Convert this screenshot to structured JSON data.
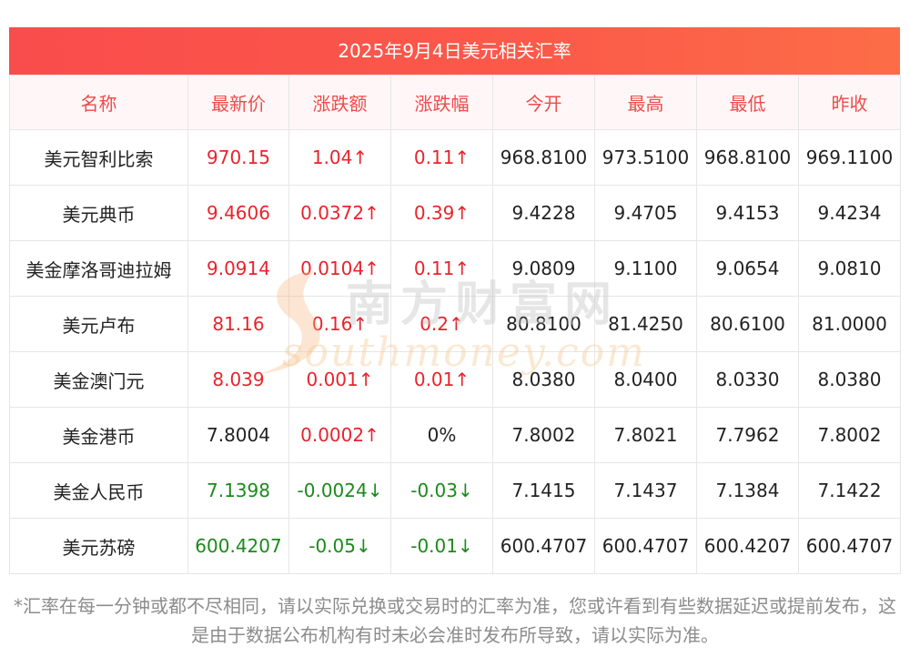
{
  "title": "2025年9月4日美元相关汇率",
  "headers": [
    "名称",
    "最新价",
    "涨跌额",
    "涨跌幅",
    "今开",
    "最高",
    "最低",
    "昨收"
  ],
  "rows": [
    {
      "name": "美元智利比索",
      "latest": "970.15",
      "change": "1.04↑",
      "pct": "0.11↑",
      "open": "968.8100",
      "high": "973.5100",
      "low": "968.8100",
      "prev": "969.1100",
      "trend": "up"
    },
    {
      "name": "美元典币",
      "latest": "9.4606",
      "change": "0.0372↑",
      "pct": "0.39↑",
      "open": "9.4228",
      "high": "9.4705",
      "low": "9.4153",
      "prev": "9.4234",
      "trend": "up"
    },
    {
      "name": "美金摩洛哥迪拉姆",
      "latest": "9.0914",
      "change": "0.0104↑",
      "pct": "0.11↑",
      "open": "9.0809",
      "high": "9.1100",
      "low": "9.0654",
      "prev": "9.0810",
      "trend": "up"
    },
    {
      "name": "美元卢布",
      "latest": "81.16",
      "change": "0.16↑",
      "pct": "0.2↑",
      "open": "80.8100",
      "high": "81.4250",
      "low": "80.6100",
      "prev": "81.0000",
      "trend": "up"
    },
    {
      "name": "美金澳门元",
      "latest": "8.039",
      "change": "0.001↑",
      "pct": "0.01↑",
      "open": "8.0380",
      "high": "8.0400",
      "low": "8.0330",
      "prev": "8.0380",
      "trend": "up"
    },
    {
      "name": "美金港币",
      "latest": "7.8004",
      "change": "0.0002↑",
      "pct": "0%",
      "open": "7.8002",
      "high": "7.8021",
      "low": "7.7962",
      "prev": "7.8002",
      "trend": "mixed"
    },
    {
      "name": "美金人民币",
      "latest": "7.1398",
      "change": "-0.0024↓",
      "pct": "-0.03↓",
      "open": "7.1415",
      "high": "7.1437",
      "low": "7.1384",
      "prev": "7.1422",
      "trend": "down"
    },
    {
      "name": "美元苏磅",
      "latest": "600.4207",
      "change": "-0.05↓",
      "pct": "-0.01↓",
      "open": "600.4707",
      "high": "600.4707",
      "low": "600.4207",
      "prev": "600.4707",
      "trend": "down"
    }
  ],
  "watermark": {
    "cn": "南方财富网",
    "en": "southmoney.com"
  },
  "footnote": "*汇率在每一分钟或都不尽相同，请以实际兑换或交易时的汇率为准，您或许看到有些数据延迟或提前发布，这是由于数据公布机构有时未必会准时发布所导致，请以实际为准。",
  "colors": {
    "up": "#e8242c",
    "down": "#1b8a1b",
    "header_text": "#ef4b4b",
    "title_bg": "#f94c4c"
  }
}
